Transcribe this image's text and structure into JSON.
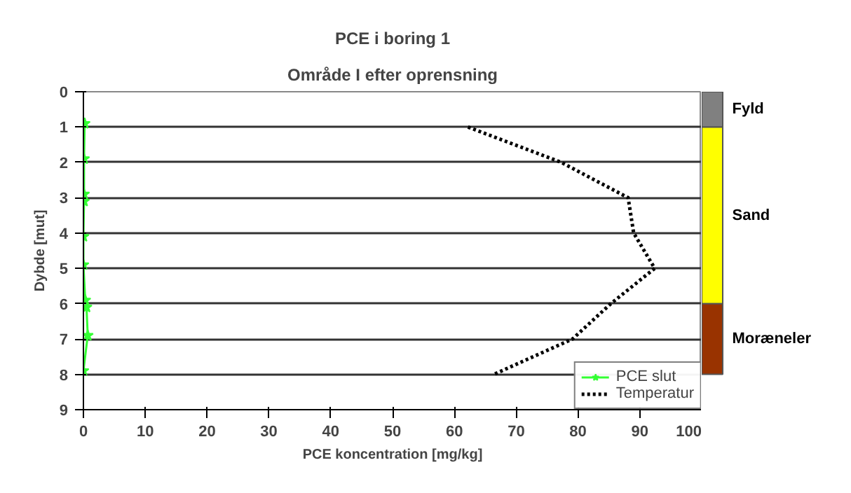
{
  "chart_data": [
    {
      "type": "line",
      "title": "PCE i boring 1",
      "subtitle": "Område I efter oprensning",
      "xlabel": "PCE koncentration [mg/kg]",
      "ylabel": "Dybde [mut]",
      "xlim": [
        0,
        100
      ],
      "xticks": [
        0,
        10,
        20,
        30,
        40,
        50,
        60,
        70,
        80,
        90,
        100
      ],
      "ylim": [
        9,
        0
      ],
      "yticks": [
        0,
        1,
        2,
        3,
        4,
        5,
        6,
        7,
        8,
        9
      ],
      "grid": "y",
      "legend": "bottom right",
      "series": [
        {
          "name": "PCE slut",
          "color": "#33ff33",
          "marker": "star",
          "line_style": "solid",
          "x": [
            0.2,
            0.1,
            0.1,
            0.1,
            0.0,
            0.0,
            0.3,
            0.5,
            0.7,
            0.0
          ],
          "values": [
            0.9,
            1.9,
            2.9,
            3.1,
            4.1,
            4.9,
            5.9,
            6.1,
            6.9,
            7.9
          ]
        },
        {
          "name": "Temperatur",
          "color": "#000000",
          "marker": "none",
          "line_style": "dotted",
          "x": [
            62.2,
            77.3,
            88.1,
            89.0,
            92.4,
            85.3,
            79.1,
            66.4
          ],
          "values": [
            1,
            2,
            3,
            4,
            5,
            6,
            7,
            8
          ]
        }
      ]
    },
    {
      "type": "bar",
      "stacked": true,
      "categories": [
        null
      ],
      "ylim": [
        9,
        0
      ],
      "tick_labels": false,
      "series": [
        {
          "name": "Fyld",
          "color": "#808080",
          "values": [
            1
          ]
        },
        {
          "name": "Sand",
          "color": "#ffff00",
          "values": [
            5
          ]
        },
        {
          "name": "Moræneler",
          "color": "#993300",
          "values": [
            2
          ]
        }
      ]
    }
  ]
}
